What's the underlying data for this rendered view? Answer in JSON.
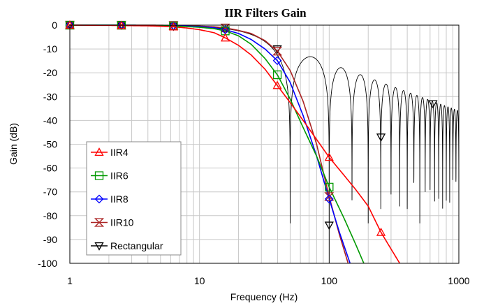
{
  "chart_data": {
    "type": "line",
    "title": "IIR  Filters Gain",
    "xlabel": "Frequency (Hz)",
    "ylabel": "Gain (dB)",
    "x_scale": "log",
    "xlim": [
      1,
      1000
    ],
    "ylim": [
      -100,
      0
    ],
    "x_ticks": [
      "1",
      "10",
      "100",
      "1000"
    ],
    "y_ticks": [
      "0",
      "-10",
      "-20",
      "-30",
      "-40",
      "-50",
      "-60",
      "-70",
      "-80",
      "-90",
      "-100"
    ],
    "grid": true,
    "legend_position": "lower-left",
    "series": [
      {
        "name": "IIR4",
        "color": "#ff0000",
        "marker": "triangle-up",
        "markers_x": [
          1,
          2.5,
          6.3,
          15.8,
          39.8,
          100,
          251
        ],
        "x": [
          1,
          2,
          4,
          6,
          8,
          10,
          13,
          16,
          20,
          25,
          32,
          40,
          50,
          63,
          80,
          100,
          130,
          160,
          200,
          251,
          300,
          350
        ],
        "y": [
          0,
          -0.1,
          -0.3,
          -0.6,
          -1.2,
          -1.9,
          -3.2,
          -5.5,
          -8.5,
          -12.5,
          -18.5,
          -25.5,
          -32.5,
          -40,
          -48,
          -55.5,
          -63,
          -69,
          -76,
          -87,
          -94,
          -100
        ]
      },
      {
        "name": "IIR6",
        "color": "#009900",
        "marker": "square",
        "markers_x": [
          1,
          2.5,
          6.3,
          15.8,
          39.8,
          100
        ],
        "x": [
          1,
          2,
          4,
          6,
          8,
          10,
          13,
          16,
          20,
          25,
          32,
          40,
          50,
          63,
          80,
          100,
          130,
          160,
          185
        ],
        "y": [
          0,
          0,
          -0.1,
          -0.3,
          -0.6,
          -0.9,
          -1.5,
          -2.5,
          -4.5,
          -8,
          -14,
          -21,
          -31,
          -43,
          -55,
          -68,
          -81,
          -92,
          -100
        ]
      },
      {
        "name": "IIR8",
        "color": "#0000ff",
        "marker": "diamond",
        "markers_x": [
          1,
          2.5,
          6.3,
          15.8,
          39.8,
          100
        ],
        "x": [
          1,
          2,
          4,
          6,
          8,
          10,
          13,
          16,
          20,
          25,
          32,
          40,
          50,
          63,
          80,
          100,
          120,
          145
        ],
        "y": [
          0,
          0,
          -0.1,
          -0.2,
          -0.4,
          -0.6,
          -1.1,
          -2,
          -3.5,
          -6,
          -10,
          -15,
          -24,
          -38,
          -55,
          -73,
          -87,
          -100
        ]
      },
      {
        "name": "IIR10",
        "color": "#aa2222",
        "marker": "hourglass",
        "markers_x": [
          1,
          2.5,
          6.3,
          15.8,
          39.8,
          100
        ],
        "x": [
          1,
          2,
          4,
          6,
          8,
          10,
          13,
          16,
          20,
          25,
          32,
          40,
          50,
          63,
          80,
          100,
          120,
          140
        ],
        "y": [
          0,
          0,
          0,
          -0.1,
          -0.2,
          -0.4,
          -0.7,
          -1.2,
          -2.2,
          -3.5,
          -6.5,
          -11,
          -19,
          -32,
          -50,
          -72,
          -88,
          -100
        ]
      },
      {
        "name": "Rectangular",
        "color": "#000000",
        "marker": "triangle-down",
        "markers_x": [
          1,
          2.5,
          6.3,
          15.8,
          39.8,
          100,
          251,
          631
        ],
        "markers_y": [
          0,
          0,
          -0.5,
          -2,
          -10,
          -84,
          -47,
          -33
        ],
        "model": "sinc",
        "sinc_cutoff_hz": 50,
        "sinc_first_null_hz": 50,
        "sinc_null_spacing_hz": 50
      }
    ]
  }
}
